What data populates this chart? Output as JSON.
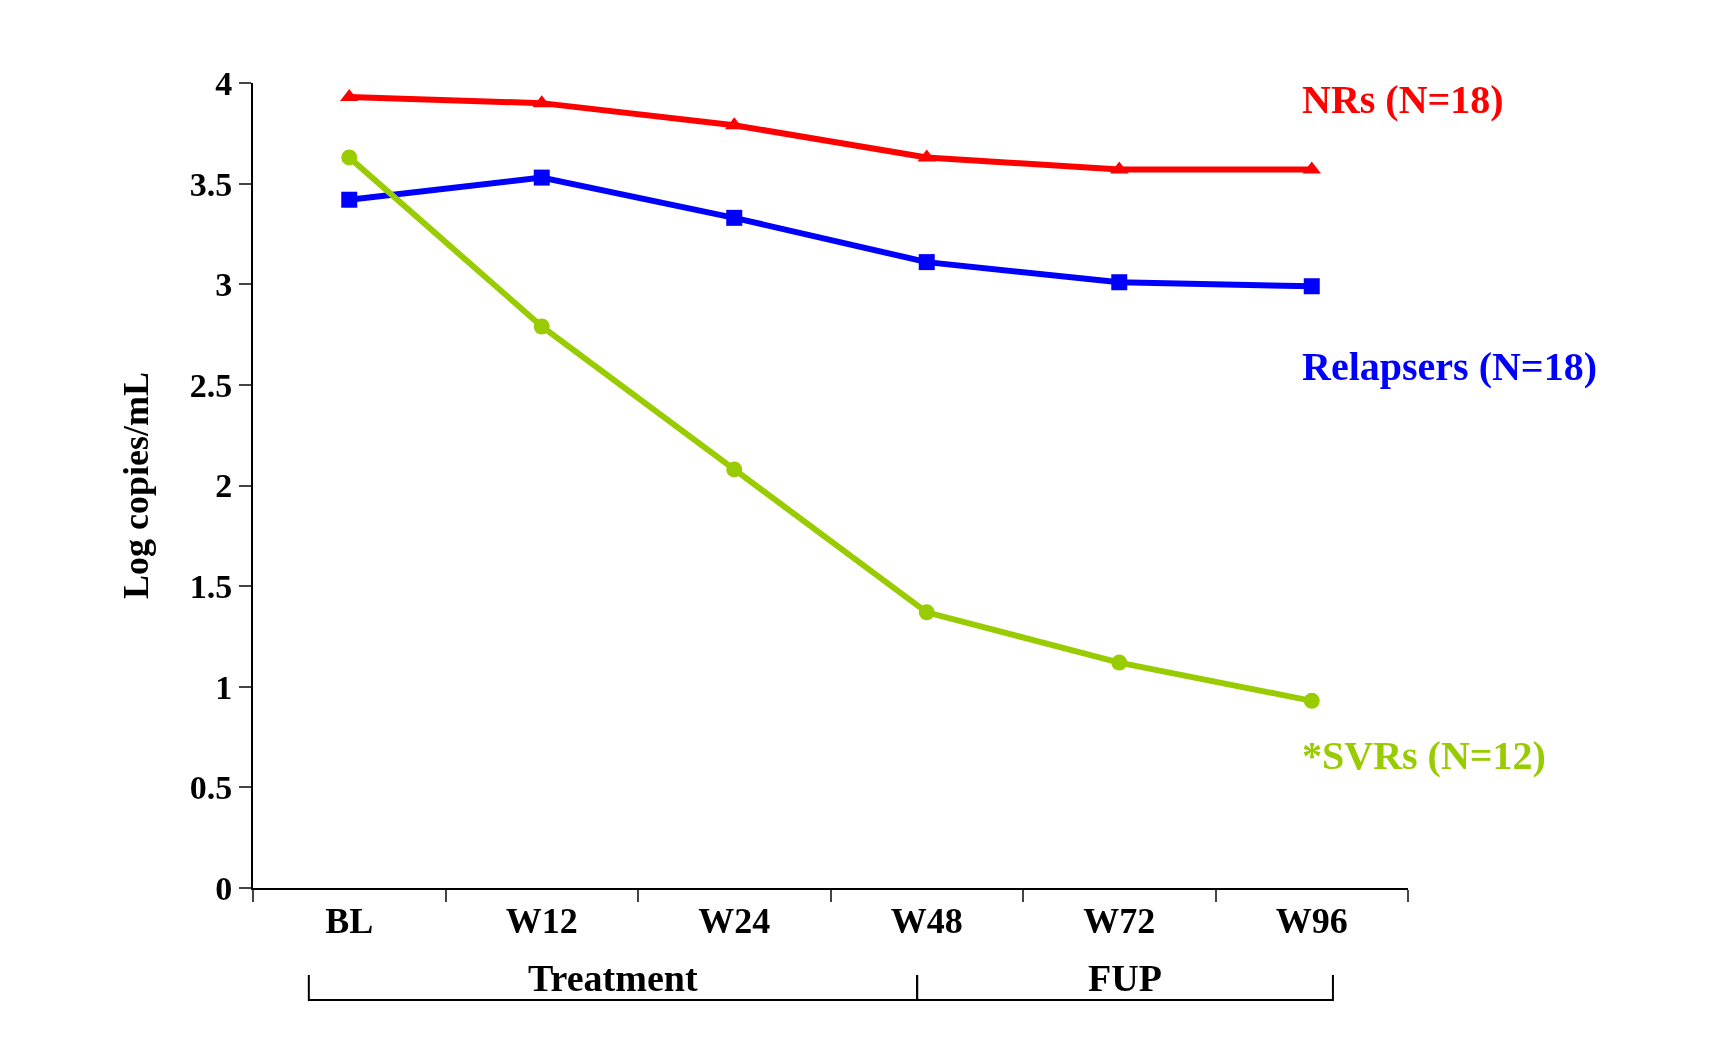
{
  "chart_data": {
    "type": "line",
    "ylabel": "Log copies/mL",
    "categories": [
      "BL",
      "W12",
      "W24",
      "W48",
      "W72",
      "W96"
    ],
    "series": [
      {
        "name": "NRs (N=18)",
        "color": "#ff0000",
        "marker": "triangle",
        "values": [
          3.93,
          3.9,
          3.79,
          3.63,
          3.57,
          3.57
        ]
      },
      {
        "name": "Relapsers (N=18)",
        "color": "#0000ff",
        "marker": "square",
        "values": [
          3.42,
          3.53,
          3.33,
          3.11,
          3.01,
          2.99
        ]
      },
      {
        "name": "*SVRs (N=12)",
        "color": "#99cc00",
        "marker": "circle",
        "values": [
          3.63,
          2.79,
          2.08,
          1.37,
          1.12,
          0.93
        ]
      }
    ],
    "ylim": [
      0,
      4
    ],
    "yticks": [
      0,
      0.5,
      1,
      1.5,
      2,
      2.5,
      3,
      3.5,
      4
    ],
    "grid": false,
    "legend": false,
    "annotations": [
      "Treatment",
      "FUP"
    ]
  }
}
